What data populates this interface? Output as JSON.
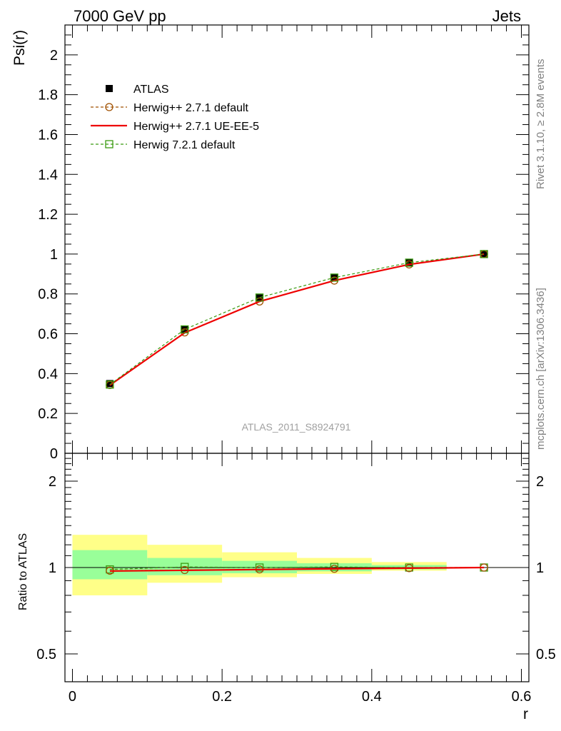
{
  "header": {
    "left": "7000 GeV pp",
    "right": "Jets"
  },
  "side_labels": {
    "rivet": "Rivet 3.1.10, ≥ 2.8M events",
    "mcplots": "mcplots.cern.ch [arXiv:1306.3436]"
  },
  "watermark": "ATLAS_2011_S8924791",
  "chart_data": [
    {
      "type": "line",
      "ylabel": "Psi(r)",
      "xlim": [
        -0.01,
        0.61
      ],
      "ylim": [
        0,
        2.15
      ],
      "y_ticks": [
        0,
        0.2,
        0.4,
        0.6,
        0.8,
        1,
        1.2,
        1.4,
        1.6,
        1.8,
        2
      ],
      "y_tick_labels": [
        "0",
        "0.2",
        "0.4",
        "0.6",
        "0.8",
        "1",
        "1.2",
        "1.4",
        "1.6",
        "1.8",
        "2"
      ],
      "x": [
        0.05,
        0.15,
        0.25,
        0.35,
        0.45,
        0.55
      ],
      "legend_position": "top-left",
      "series": [
        {
          "name": "ATLAS",
          "style": "data",
          "color": "#000000",
          "values": [
            0.35,
            0.62,
            0.78,
            0.88,
            0.955,
            1.0
          ]
        },
        {
          "name": "Herwig++ 2.7.1 default",
          "style": "dashed-circle",
          "color": "#a05000",
          "values": [
            0.343,
            0.607,
            0.762,
            0.867,
            0.948,
            1.0
          ]
        },
        {
          "name": "Herwig++ 2.7.1 UE-EE-5",
          "style": "solid",
          "color": "#ee0000",
          "values": [
            0.342,
            0.605,
            0.762,
            0.867,
            0.948,
            1.0
          ]
        },
        {
          "name": "Herwig 7.2.1 default",
          "style": "dashed-square",
          "color": "#3a9a10",
          "values": [
            0.345,
            0.622,
            0.782,
            0.882,
            0.957,
            1.0
          ]
        }
      ]
    },
    {
      "type": "line",
      "ylabel": "Ratio to ATLAS",
      "xlabel": "r",
      "log_y": true,
      "xlim": [
        -0.01,
        0.61
      ],
      "ylim": [
        0.4,
        2.5
      ],
      "x_ticks": [
        0,
        0.2,
        0.4,
        0.6
      ],
      "x_tick_labels": [
        "0",
        "0.2",
        "0.4",
        "0.6"
      ],
      "y_ticks": [
        0.5,
        1,
        2
      ],
      "y_tick_labels": [
        "0.5",
        "1",
        "2"
      ],
      "x": [
        0.05,
        0.15,
        0.25,
        0.35,
        0.45,
        0.55
      ],
      "bins": [
        [
          0,
          0.1
        ],
        [
          0.1,
          0.2
        ],
        [
          0.2,
          0.3
        ],
        [
          0.3,
          0.4
        ],
        [
          0.4,
          0.5
        ],
        [
          0.5,
          0.6
        ]
      ],
      "band_inner": [
        [
          0.91,
          1.15
        ],
        [
          0.94,
          1.08
        ],
        [
          0.955,
          1.055
        ],
        [
          0.97,
          1.035
        ],
        [
          0.985,
          1.02
        ],
        [
          0.998,
          1.002
        ]
      ],
      "band_outer": [
        [
          0.8,
          1.3
        ],
        [
          0.885,
          1.2
        ],
        [
          0.925,
          1.13
        ],
        [
          0.95,
          1.08
        ],
        [
          0.975,
          1.045
        ],
        [
          0.997,
          1.003
        ]
      ],
      "band_colors": {
        "inner": "#99ff99",
        "outer": "#ffff88"
      },
      "series": [
        {
          "name": "Herwig++ 2.7.1 default",
          "color": "#a05000",
          "values": [
            0.975,
            0.98,
            0.985,
            0.99,
            0.995,
            1.0
          ]
        },
        {
          "name": "Herwig++ 2.7.1 UE-EE-5",
          "color": "#ee0000",
          "values": [
            0.972,
            0.978,
            0.984,
            0.99,
            0.995,
            1.0
          ]
        },
        {
          "name": "Herwig 7.2.1 default",
          "color": "#3a9a10",
          "values": [
            0.985,
            1.005,
            1.0,
            1.005,
            1.0,
            1.0
          ]
        }
      ]
    }
  ]
}
